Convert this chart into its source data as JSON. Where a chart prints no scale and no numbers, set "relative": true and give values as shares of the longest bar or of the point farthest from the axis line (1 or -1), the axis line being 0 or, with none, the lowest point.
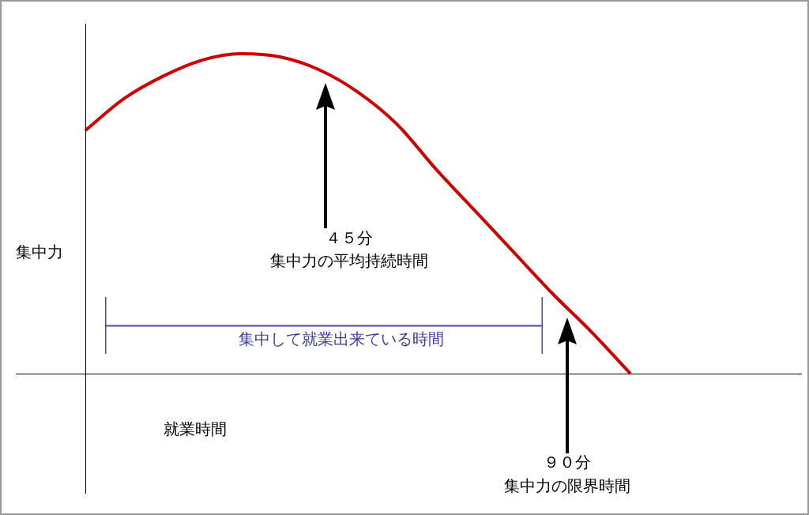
{
  "chart_data": {
    "type": "line",
    "relative": true,
    "xlabel": "就業時間",
    "ylabel": "集中力",
    "categories": [
      null,
      null,
      null,
      null,
      null,
      null,
      null,
      null,
      null,
      null,
      null,
      null,
      null,
      null,
      null
    ],
    "series": [
      {
        "color": "#cc0000",
        "values": [
          0.76,
          0.86,
          0.93,
          0.98,
          1,
          0.99,
          0.95,
          0.88,
          0.78,
          0.64,
          0.51,
          0.38,
          0.25,
          0.13,
          0
        ]
      }
    ],
    "annotations": [
      "４５分",
      "集中力の平均持続時間",
      "９０分",
      "集中力の限界時間",
      "集中して就業出来ている時間"
    ],
    "legend": false,
    "marker": "none",
    "line_style": "solid"
  }
}
